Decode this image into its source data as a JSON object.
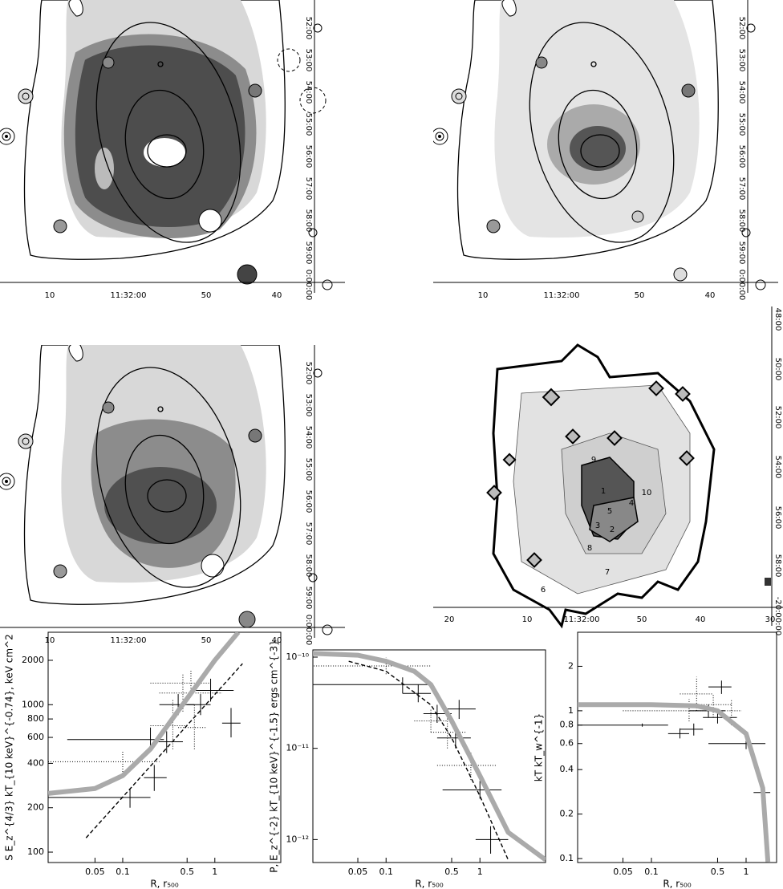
{
  "maps": [
    {
      "y_ticks": [
        "52:00",
        "53:00",
        "54:00",
        "55:00",
        "56:00",
        "57:00",
        "58:00",
        "59:00",
        "0:00:00"
      ],
      "x_ticks": [
        "10",
        "11:32:00",
        "50",
        "40"
      ]
    },
    {
      "y_ticks": [
        "52:00",
        "53:00",
        "54:00",
        "55:00",
        "56:00",
        "57:00",
        "58:00",
        "59:00",
        "0:00:00"
      ],
      "x_ticks": [
        "10",
        "11:32:00",
        "50",
        "40"
      ]
    },
    {
      "y_ticks": [
        "52:00",
        "53:00",
        "54:00",
        "55:00",
        "56:00",
        "57:00",
        "58:00",
        "59:00",
        "0:00:00"
      ],
      "x_ticks": [
        "10",
        "11:32:00",
        "50",
        "40"
      ]
    },
    {
      "y_ticks": [
        "48:00",
        "50:00",
        "52:00",
        "54:00",
        "56:00",
        "58:00",
        "-20:00:00"
      ],
      "x_ticks": [
        "20",
        "10",
        "11:32:00",
        "50",
        "40",
        "30"
      ],
      "regions": [
        "1",
        "2",
        "3",
        "4",
        "5",
        "6",
        "7",
        "8",
        "9",
        "10"
      ]
    }
  ],
  "chart_data": [
    {
      "type": "scatter",
      "xlabel": "R, r₅₀₀",
      "ylabel": "S E_z^{4/3} kT_{10 keV}^{-0.74}, keV cm^2",
      "xscale": "log",
      "yscale": "log",
      "xlim": [
        0.0155,
        5.2
      ],
      "ylim": [
        85,
        3100
      ],
      "xticks": [
        0.05,
        0.1,
        0.5,
        1
      ],
      "yticks": [
        100,
        200,
        400,
        600,
        800,
        1000,
        2000
      ],
      "series": [
        {
          "kind": "points",
          "style": "solid",
          "color": "#000000",
          "x": [
            0.12,
            0.2,
            0.22,
            0.3,
            0.4,
            0.7,
            0.9,
            1.5
          ],
          "values": [
            235,
            580,
            320,
            560,
            1000,
            1000,
            1250,
            750
          ],
          "xerr": [
            [
              0.0155,
              0.2
            ],
            [
              0.025,
              0.28
            ],
            [
              0.17,
              0.3
            ],
            [
              0.22,
              0.45
            ],
            [
              0.25,
              0.6
            ],
            [
              0.5,
              0.9
            ],
            [
              0.6,
              1.6
            ],
            [
              1.2,
              1.9
            ]
          ],
          "yerr": [
            [
              200,
              270
            ],
            [
              480,
              700
            ],
            [
              260,
              390
            ],
            [
              470,
              660
            ],
            [
              850,
              1180
            ],
            [
              850,
              1180
            ],
            [
              1050,
              1500
            ],
            [
              600,
              950
            ]
          ]
        },
        {
          "kind": "points",
          "style": "dotted",
          "color": "#000000",
          "x": [
            0.1,
            0.35,
            0.55,
            0.45,
            0.6
          ],
          "values": [
            410,
            720,
            1400,
            1200,
            700
          ],
          "xerr": [
            [
              0.0155,
              0.25
            ],
            [
              0.2,
              0.5
            ],
            [
              0.2,
              0.9
            ],
            [
              0.25,
              1.2
            ],
            [
              0.4,
              0.8
            ]
          ],
          "yerr": [
            [
              350,
              480
            ],
            [
              500,
              1100
            ],
            [
              1150,
              1700
            ],
            [
              900,
              1600
            ],
            [
              500,
              1000
            ]
          ]
        },
        {
          "kind": "line",
          "style": "thick",
          "color": "#aaaaaa",
          "x": [
            0.0155,
            0.05,
            0.1,
            0.2,
            0.5,
            1,
            1.8
          ],
          "values": [
            250,
            270,
            330,
            500,
            1100,
            2000,
            3100
          ]
        },
        {
          "kind": "line",
          "style": "dashed",
          "color": "#000000",
          "x": [
            0.04,
            2
          ],
          "values": [
            125,
            1900
          ]
        }
      ]
    },
    {
      "type": "scatter",
      "xlabel": "R, r₅₀₀",
      "ylabel": "P, E_z^{-2} kT_{10 keV}^{-1.5} ergs cm^{-3}",
      "xscale": "log",
      "yscale": "log",
      "xlim": [
        0.0166,
        5
      ],
      "ylim": [
        5.6e-13,
        1.2e-10
      ],
      "xticks": [
        0.05,
        0.1,
        0.5,
        1
      ],
      "yticks": [
        {
          "value": 1e-10,
          "label": "10⁻¹⁰"
        },
        {
          "value": 1e-11,
          "label": "10⁻¹¹"
        },
        {
          "value": 1e-12,
          "label": "10⁻¹²"
        }
      ],
      "series": [
        {
          "kind": "points",
          "style": "solid",
          "color": "#000000",
          "x": [
            0.15,
            0.22,
            0.35,
            0.55,
            0.6,
            1,
            1.3
          ],
          "values": [
            5e-11,
            4e-11,
            2.4e-11,
            1.3e-11,
            2.7e-11,
            3.5e-12,
            1e-12
          ],
          "xerr": [
            [
              0.016,
              0.3
            ],
            [
              0.15,
              0.3
            ],
            [
              0.25,
              0.5
            ],
            [
              0.35,
              0.8
            ],
            [
              0.4,
              0.9
            ],
            [
              0.4,
              1.7
            ],
            [
              0.9,
              2
            ]
          ],
          "yerr": [
            [
              4e-11,
              6e-11
            ],
            [
              3.2e-11,
              5e-11
            ],
            [
              1.9e-11,
              3e-11
            ],
            [
              1e-11,
              1.7e-11
            ],
            [
              2.1e-11,
              3.4e-11
            ],
            [
              2.8e-12,
              4.4e-12
            ],
            [
              7e-13,
              1.4e-12
            ]
          ]
        },
        {
          "kind": "points",
          "style": "dotted",
          "color": "#000000",
          "x": [
            0.1,
            0.3,
            0.45,
            0.8
          ],
          "values": [
            8e-11,
            2e-11,
            1.5e-11,
            6.5e-12
          ],
          "xerr": [
            [
              0.016,
              0.3
            ],
            [
              0.2,
              0.45
            ],
            [
              0.3,
              0.7
            ],
            [
              0.35,
              1.5
            ]
          ],
          "yerr": [
            [
              6.5e-11,
              1e-10
            ],
            [
              1.5e-11,
              2.7e-11
            ],
            [
              1e-11,
              2.2e-11
            ],
            [
              4.5e-12,
              9e-12
            ]
          ]
        },
        {
          "kind": "line",
          "style": "thick",
          "color": "#aaaaaa",
          "x": [
            0.016,
            0.05,
            0.1,
            0.2,
            0.3,
            0.5,
            1,
            2,
            5
          ],
          "values": [
            1.1e-10,
            1.05e-10,
            9e-11,
            7e-11,
            5e-11,
            2e-11,
            5e-12,
            1.2e-12,
            6e-13
          ]
        },
        {
          "kind": "line",
          "style": "dashed",
          "color": "#000000",
          "x": [
            0.04,
            0.1,
            0.3,
            0.5,
            1,
            2
          ],
          "values": [
            9e-11,
            7e-11,
            3e-11,
            1.3e-11,
            3e-12,
            6e-13
          ]
        }
      ]
    },
    {
      "type": "scatter",
      "xlabel": "R, r₅₀₀",
      "ylabel": "kT kT_w^{-1}",
      "xscale": "log",
      "yscale": "log",
      "xlim": [
        0.0166,
        2.1
      ],
      "ylim": [
        0.094,
        3.4
      ],
      "xticks": [
        0.05,
        0.1,
        0.5,
        1
      ],
      "yticks": [
        0.1,
        0.2,
        0.4,
        0.6,
        0.8,
        1,
        2
      ],
      "series": [
        {
          "kind": "points",
          "style": "solid",
          "color": "#000000",
          "x": [
            0.08,
            0.2,
            0.28,
            0.4,
            0.5,
            0.55,
            1,
            1.5
          ],
          "values": [
            0.8,
            0.7,
            0.75,
            1.0,
            0.9,
            1.45,
            0.6,
            0.28
          ],
          "xerr": [
            [
              0.0166,
              0.15
            ],
            [
              0.15,
              0.25
            ],
            [
              0.2,
              0.35
            ],
            [
              0.25,
              0.6
            ],
            [
              0.35,
              0.8
            ],
            [
              0.4,
              0.7
            ],
            [
              0.4,
              1.6
            ],
            [
              1.2,
              1.8
            ]
          ],
          "yerr": [
            [
              0.78,
              0.82
            ],
            [
              0.65,
              0.76
            ],
            [
              0.68,
              0.82
            ],
            [
              0.9,
              1.1
            ],
            [
              0.82,
              0.98
            ],
            [
              1.3,
              1.6
            ],
            [
              0.55,
              0.66
            ],
            [
              0.24,
              0.32
            ]
          ]
        },
        {
          "kind": "points",
          "style": "dotted",
          "color": "#000000",
          "x": [
            0.3,
            0.25,
            0.45,
            0.7
          ],
          "values": [
            1.3,
            1.0,
            1.1,
            1.0
          ],
          "xerr": [
            [
              0.2,
              0.45
            ],
            [
              0.05,
              0.5
            ],
            [
              0.3,
              0.7
            ],
            [
              0.5,
              0.9
            ]
          ],
          "yerr": [
            [
              1.0,
              1.7
            ],
            [
              0.85,
              1.2
            ],
            [
              0.9,
              1.3
            ],
            [
              0.8,
              1.2
            ]
          ]
        },
        {
          "kind": "line",
          "style": "thick",
          "color": "#aaaaaa",
          "x": [
            0.0166,
            0.1,
            0.3,
            0.5,
            1,
            1.5,
            1.7
          ],
          "values": [
            1.1,
            1.1,
            1.08,
            1.0,
            0.7,
            0.3,
            0.095
          ]
        }
      ]
    }
  ]
}
